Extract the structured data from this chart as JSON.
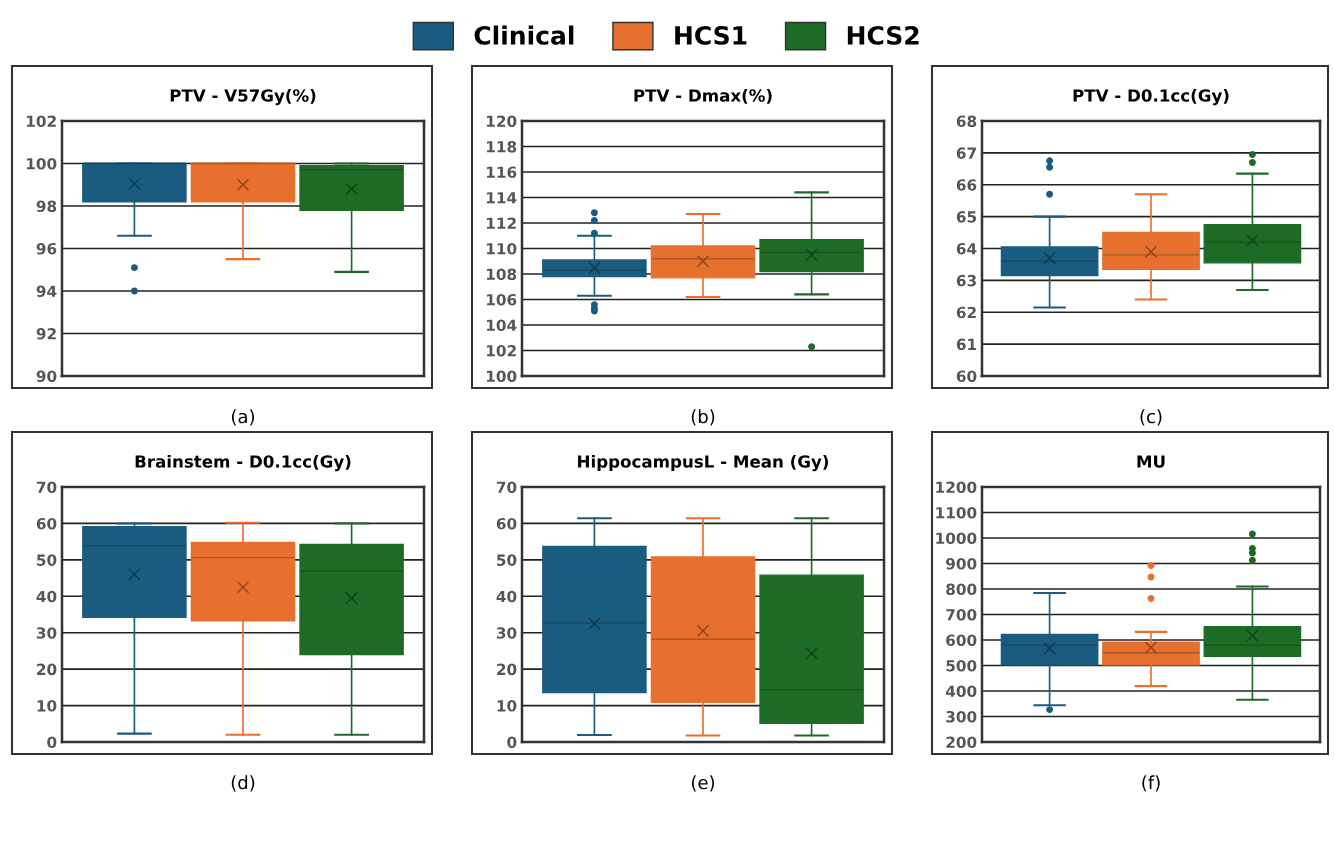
{
  "chart_data": [
    {
      "type": "box",
      "title": "PTV - V57Gy(%)",
      "xlabel": "(a)",
      "categories": [
        null
      ],
      "ylim": [
        90,
        102
      ],
      "yticks": [
        90,
        92,
        94,
        96,
        98,
        100,
        102
      ],
      "grid": "y",
      "tick_labels": "y",
      "legend": "top",
      "series": [
        {
          "name": "Clinical",
          "color": "#1a5c80",
          "boxes": [
            {
              "low": 96.6,
              "q1": 98.2,
              "median": 100,
              "q3": 100,
              "high": 100,
              "mean": 99.05,
              "outliers": [
                95.1,
                94.0
              ]
            }
          ]
        },
        {
          "name": "HCS1",
          "color": "#e8702e",
          "boxes": [
            {
              "low": 95.5,
              "q1": 98.2,
              "median": 100,
              "q3": 100,
              "high": 100,
              "mean": 99.0
            }
          ]
        },
        {
          "name": "HCS2",
          "color": "#1e6b26",
          "boxes": [
            {
              "low": 94.9,
              "q1": 97.8,
              "median": 99.7,
              "q3": 99.9,
              "high": 100,
              "mean": 98.8
            }
          ]
        }
      ]
    },
    {
      "type": "box",
      "title": "PTV - Dmax(%)",
      "xlabel": "(b)",
      "categories": [
        null
      ],
      "ylim": [
        100,
        120
      ],
      "yticks": [
        100,
        102,
        104,
        106,
        108,
        110,
        112,
        114,
        116,
        118,
        120
      ],
      "grid": "y",
      "tick_labels": "y",
      "series": [
        {
          "color": "#1a5c80",
          "boxes": [
            {
              "low": 106.3,
              "q1": 107.8,
              "median": 108.3,
              "q3": 109.1,
              "high": 111.0,
              "mean": 108.5,
              "outliers": [
                112.8,
                112.2,
                111.2,
                105.6,
                105.3,
                105.1
              ]
            }
          ]
        },
        {
          "color": "#e8702e",
          "boxes": [
            {
              "low": 106.2,
              "q1": 107.7,
              "median": 109.2,
              "q3": 110.2,
              "high": 112.7,
              "mean": 109.0
            }
          ]
        },
        {
          "color": "#1e6b26",
          "boxes": [
            {
              "low": 106.4,
              "q1": 108.2,
              "median": 109.7,
              "q3": 110.7,
              "high": 114.4,
              "mean": 109.5,
              "outliers": [
                102.3
              ]
            }
          ]
        }
      ]
    },
    {
      "type": "box",
      "title": "PTV - D0.1cc(Gy)",
      "xlabel": "(c)",
      "categories": [
        null
      ],
      "ylim": [
        60,
        68
      ],
      "yticks": [
        60,
        61,
        62,
        63,
        64,
        65,
        66,
        67,
        68
      ],
      "grid": "y",
      "tick_labels": "y",
      "series": [
        {
          "color": "#1a5c80",
          "boxes": [
            {
              "low": 62.15,
              "q1": 63.15,
              "median": 63.6,
              "q3": 64.05,
              "high": 65.0,
              "mean": 63.7,
              "outliers": [
                66.75,
                66.55,
                65.7
              ]
            }
          ]
        },
        {
          "color": "#e8702e",
          "boxes": [
            {
              "low": 62.4,
              "q1": 63.35,
              "median": 63.8,
              "q3": 64.5,
              "high": 65.7,
              "mean": 63.9
            }
          ]
        },
        {
          "color": "#1e6b26",
          "boxes": [
            {
              "low": 62.7,
              "q1": 63.55,
              "median": 64.2,
              "q3": 64.75,
              "high": 66.35,
              "mean": 64.25,
              "outliers": [
                66.95,
                66.7
              ]
            }
          ]
        }
      ]
    },
    {
      "type": "box",
      "title": "Brainstem - D0.1cc(Gy)",
      "xlabel": "(d)",
      "categories": [
        null
      ],
      "ylim": [
        0,
        70
      ],
      "yticks": [
        0,
        10,
        20,
        30,
        40,
        50,
        60,
        70
      ],
      "grid": "y",
      "tick_labels": "y",
      "series": [
        {
          "color": "#1a5c80",
          "boxes": [
            {
              "low": 2.3,
              "q1": 34.2,
              "median": 53.8,
              "q3": 59.1,
              "high": 60,
              "mean": 46
            }
          ]
        },
        {
          "color": "#e8702e",
          "boxes": [
            {
              "low": 2,
              "q1": 33.3,
              "median": 50.6,
              "q3": 54.8,
              "high": 60.2,
              "mean": 42.5
            }
          ]
        },
        {
          "color": "#1e6b26",
          "boxes": [
            {
              "low": 2,
              "q1": 24,
              "median": 46.9,
              "q3": 54.2,
              "high": 60,
              "mean": 39.5
            }
          ]
        }
      ]
    },
    {
      "type": "box",
      "title": "HippocampusL - Mean (Gy)",
      "xlabel": "(e)",
      "categories": [
        null
      ],
      "ylim": [
        0,
        70
      ],
      "yticks": [
        0,
        10,
        20,
        30,
        40,
        50,
        60,
        70
      ],
      "grid": "y",
      "tick_labels": "y",
      "series": [
        {
          "color": "#1a5c80",
          "boxes": [
            {
              "low": 1.9,
              "q1": 13.6,
              "median": 32.7,
              "q3": 53.7,
              "high": 61.4,
              "mean": 32.5
            }
          ]
        },
        {
          "color": "#e8702e",
          "boxes": [
            {
              "low": 1.8,
              "q1": 10.9,
              "median": 28.2,
              "q3": 50.8,
              "high": 61.4,
              "mean": 30.5
            }
          ]
        },
        {
          "color": "#1e6b26",
          "boxes": [
            {
              "low": 1.8,
              "q1": 5.1,
              "median": 14.3,
              "q3": 45.8,
              "high": 61.4,
              "mean": 24.3
            }
          ]
        }
      ]
    },
    {
      "type": "box",
      "title": "MU",
      "xlabel": "(f)",
      "categories": [
        null
      ],
      "ylim": [
        200,
        1200
      ],
      "yticks": [
        200,
        300,
        400,
        500,
        600,
        700,
        800,
        900,
        1000,
        1100,
        1200
      ],
      "grid": "y",
      "tick_labels": "y",
      "series": [
        {
          "color": "#1a5c80",
          "boxes": [
            {
              "low": 344,
              "q1": 503,
              "median": 580,
              "q3": 622,
              "high": 784,
              "mean": 567,
              "outliers": [
                327
              ]
            }
          ]
        },
        {
          "color": "#e8702e",
          "boxes": [
            {
              "low": 419,
              "q1": 503,
              "median": 550,
              "q3": 591,
              "high": 632,
              "mean": 570,
              "outliers": [
                892,
                847,
                763
              ]
            }
          ]
        },
        {
          "color": "#1e6b26",
          "boxes": [
            {
              "low": 366,
              "q1": 536,
              "median": 580,
              "q3": 652,
              "high": 810,
              "mean": 617,
              "outliers": [
                1016,
                959,
                941,
                913
              ]
            }
          ]
        }
      ]
    }
  ]
}
